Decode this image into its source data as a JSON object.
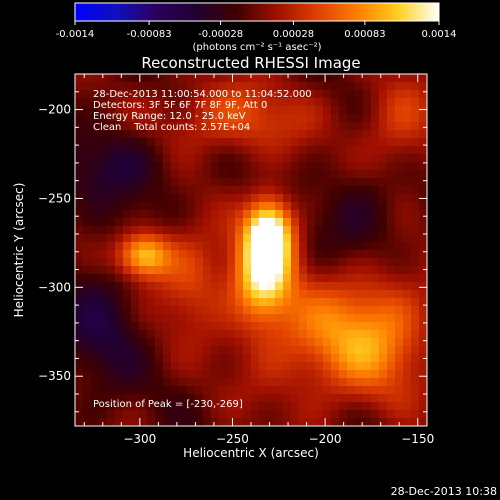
{
  "colorbar": {
    "tick_labels": [
      "-0.0014",
      "-0.00083",
      "-0.00028",
      "0.00028",
      "0.00083",
      "0.0014"
    ],
    "tick_values": [
      -0.0014,
      -0.00083,
      -0.00028,
      0.00028,
      0.00083,
      0.0014
    ],
    "range": [
      -0.0014,
      0.0014
    ],
    "unit_label": "(photons cm⁻² s⁻¹ asec⁻²)",
    "colormap": [
      "#0000ff",
      "#1010c0",
      "#2a0060",
      "#200030",
      "#400000",
      "#a01000",
      "#e04000",
      "#ff8000",
      "#ffd020",
      "#ffffff"
    ]
  },
  "chart_data": {
    "type": "heatmap",
    "title": "Reconstructed RHESSI Image",
    "xlabel": "Heliocentric X (arcsec)",
    "ylabel": "Heliocentric Y (arcsec)",
    "xlim": [
      -335,
      -145
    ],
    "ylim": [
      -378,
      -180
    ],
    "x_ticks": [
      -300,
      -250,
      -200,
      -150
    ],
    "x_tick_labels": [
      "−300",
      "−250",
      "−200",
      "−150"
    ],
    "y_ticks": [
      -350,
      -300,
      -250,
      -200
    ],
    "y_tick_labels": [
      "−350",
      "−300",
      "−250",
      "−200"
    ],
    "annotations": [
      "28-Dec-2013 11:00:54.000 to 11:04:52.000",
      "Detectors: 3F 5F 6F 7F 8F 9F, Att 0",
      "Energy Range: 12.0 - 25.0 keV",
      "Clean    Total counts: 2.57E+04"
    ],
    "peak_label": "Position of Peak = [-230,-269]",
    "peak": [
      -230,
      -269
    ],
    "sources": [
      {
        "x": -230,
        "y": -269,
        "amp": 1.0,
        "sx": 9,
        "sy": 14
      },
      {
        "x": -234,
        "y": -295,
        "amp": 0.75,
        "sx": 11,
        "sy": 18
      },
      {
        "x": -298,
        "y": -282,
        "amp": 0.75,
        "sx": 10,
        "sy": 9
      },
      {
        "x": -272,
        "y": -295,
        "amp": 0.35,
        "sx": 14,
        "sy": 20
      },
      {
        "x": -200,
        "y": -330,
        "amp": 0.4,
        "sx": 30,
        "sy": 25
      },
      {
        "x": -250,
        "y": -205,
        "amp": 0.35,
        "sx": 30,
        "sy": 15
      },
      {
        "x": -160,
        "y": -210,
        "amp": 0.3,
        "sx": 15,
        "sy": 20
      },
      {
        "x": -170,
        "y": -325,
        "amp": 0.35,
        "sx": 20,
        "sy": 25
      },
      {
        "x": -310,
        "y": -230,
        "amp": -0.25,
        "sx": 20,
        "sy": 15
      },
      {
        "x": -320,
        "y": -320,
        "amp": -0.25,
        "sx": 15,
        "sy": 25
      },
      {
        "x": -180,
        "y": -260,
        "amp": -0.2,
        "sx": 15,
        "sy": 20
      }
    ]
  },
  "footer": {
    "timestamp": "28-Dec-2013 10:38"
  }
}
